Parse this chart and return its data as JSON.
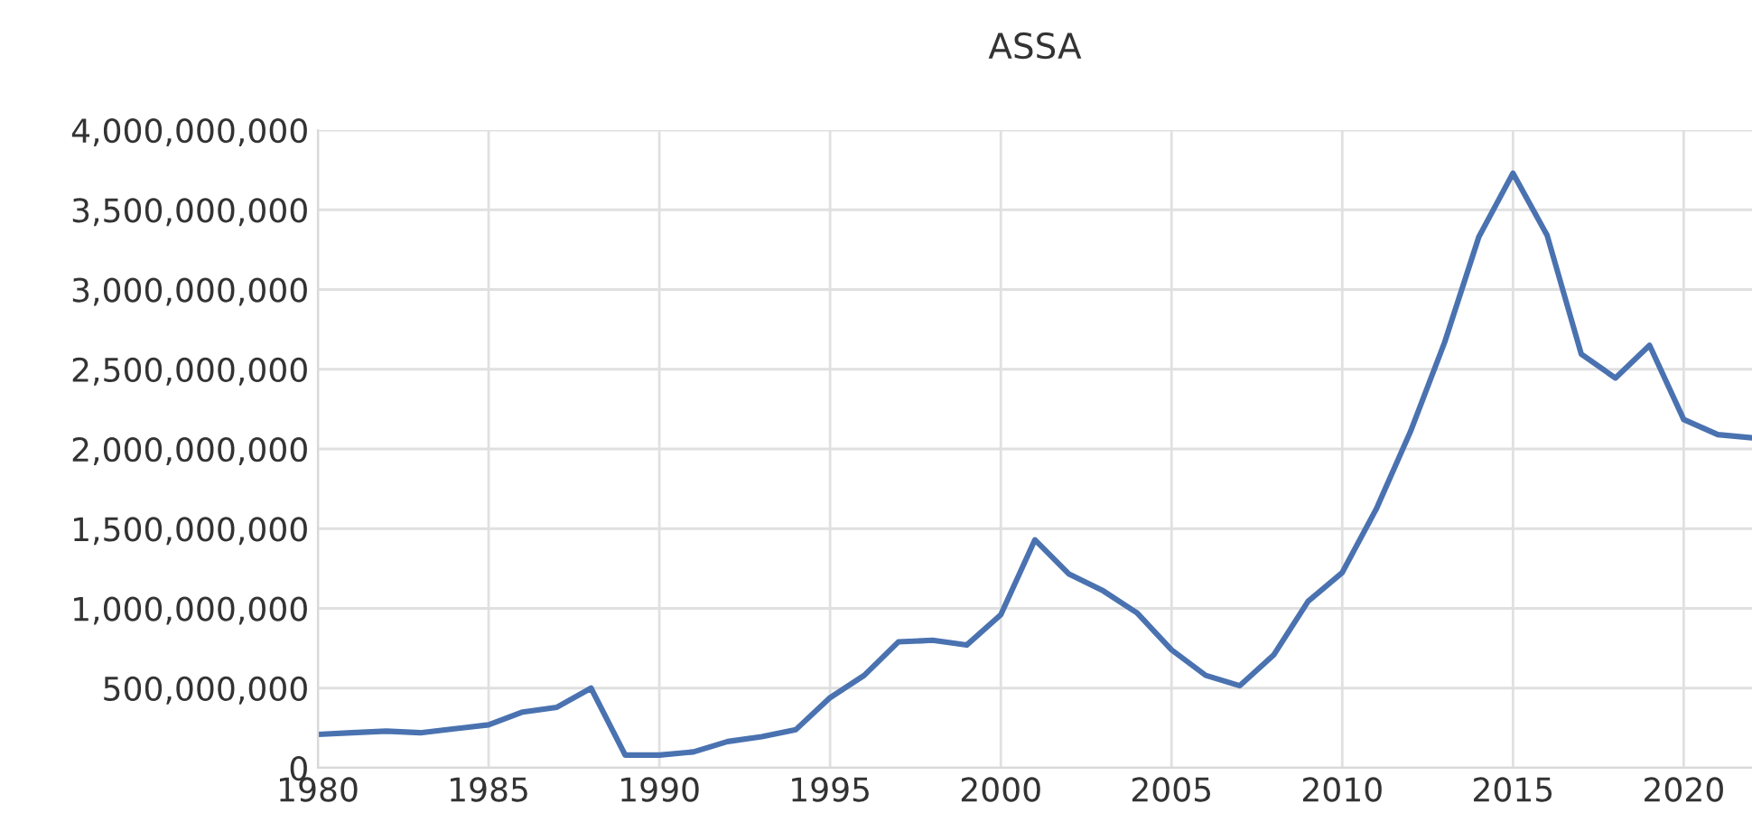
{
  "chart_data": {
    "type": "line",
    "title": "ASSA",
    "x": [
      1980,
      1981,
      1982,
      1983,
      1984,
      1985,
      1986,
      1987,
      1988,
      1989,
      1990,
      1991,
      1992,
      1993,
      1994,
      1995,
      1996,
      1997,
      1998,
      1999,
      2000,
      2001,
      2002,
      2003,
      2004,
      2005,
      2006,
      2007,
      2008,
      2009,
      2010,
      2011,
      2012,
      2013,
      2014,
      2015,
      2016,
      2017,
      2018,
      2019,
      2020,
      2021,
      2022
    ],
    "series": [
      {
        "color": "#4a72b0",
        "values": [
          210000000,
          220000000,
          230000000,
          220000000,
          245000000,
          270000000,
          350000000,
          380000000,
          500000000,
          80000000,
          80000000,
          100000000,
          165000000,
          195000000,
          240000000,
          440000000,
          580000000,
          790000000,
          800000000,
          770000000,
          960000000,
          1430000000,
          1215000000,
          1110000000,
          970000000,
          740000000,
          580000000,
          515000000,
          710000000,
          1045000000,
          1225000000,
          1625000000,
          2110000000,
          2670000000,
          3330000000,
          3730000000,
          3340000000,
          2595000000,
          2445000000,
          2650000000,
          2185000000,
          2090000000,
          2070000000
        ]
      }
    ],
    "xlim": [
      1980,
      2022
    ],
    "xticks": [
      1980,
      1985,
      1990,
      1995,
      2000,
      2005,
      2010,
      2015,
      2020
    ],
    "ylim": [
      0,
      4000000000
    ],
    "yticks": [
      {
        "value": 0,
        "label": "0"
      },
      {
        "value": 500000000,
        "label": "500,000,000"
      },
      {
        "value": 1000000000,
        "label": "1,000,000,000"
      },
      {
        "value": 1500000000,
        "label": "1,500,000,000"
      },
      {
        "value": 2000000000,
        "label": "2,000,000,000"
      },
      {
        "value": 2500000000,
        "label": "2,500,000,000"
      },
      {
        "value": 3000000000,
        "label": "3,000,000,000"
      },
      {
        "value": 3500000000,
        "label": "3,500,000,000"
      },
      {
        "value": 4000000000,
        "label": "4,000,000,000"
      }
    ],
    "grid": true,
    "marker": "none",
    "line_style": "solid"
  }
}
